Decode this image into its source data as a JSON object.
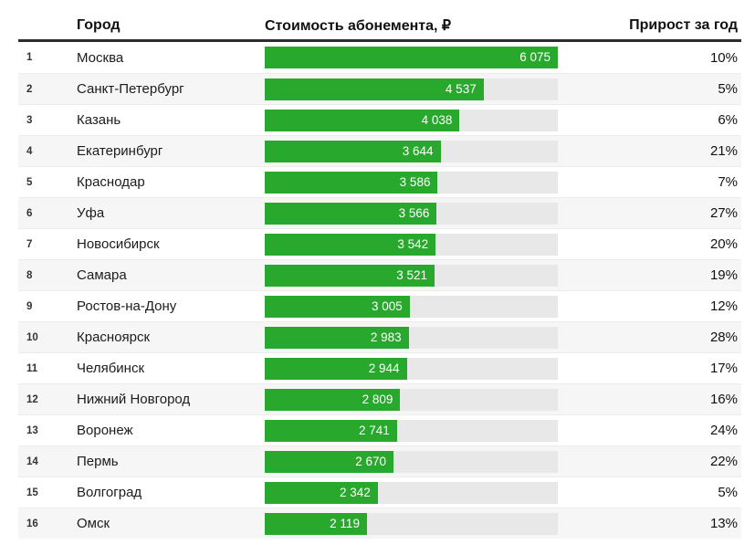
{
  "table": {
    "headers": {
      "city": "Город",
      "price": "Стоимость абонемента, ₽",
      "growth": "Прирост за год"
    },
    "max_value": 6075,
    "rows": [
      {
        "rank": "1",
        "city": "Москва",
        "value": 6075,
        "value_label": "6 075",
        "growth": "10%"
      },
      {
        "rank": "2",
        "city": "Санкт-Петербург",
        "value": 4537,
        "value_label": "4 537",
        "growth": "5%"
      },
      {
        "rank": "3",
        "city": "Казань",
        "value": 4038,
        "value_label": "4 038",
        "growth": "6%"
      },
      {
        "rank": "4",
        "city": "Екатеринбург",
        "value": 3644,
        "value_label": "3 644",
        "growth": "21%"
      },
      {
        "rank": "5",
        "city": "Краснодар",
        "value": 3586,
        "value_label": "3 586",
        "growth": "7%"
      },
      {
        "rank": "6",
        "city": "Уфа",
        "value": 3566,
        "value_label": "3 566",
        "growth": "27%"
      },
      {
        "rank": "7",
        "city": "Новосибирск",
        "value": 3542,
        "value_label": "3 542",
        "growth": "20%"
      },
      {
        "rank": "8",
        "city": "Самара",
        "value": 3521,
        "value_label": "3 521",
        "growth": "19%"
      },
      {
        "rank": "9",
        "city": "Ростов-на-Дону",
        "value": 3005,
        "value_label": "3 005",
        "growth": "12%"
      },
      {
        "rank": "10",
        "city": "Красноярск",
        "value": 2983,
        "value_label": "2 983",
        "growth": "28%"
      },
      {
        "rank": "11",
        "city": "Челябинск",
        "value": 2944,
        "value_label": "2 944",
        "growth": "17%"
      },
      {
        "rank": "12",
        "city": "Нижний Новгород",
        "value": 2809,
        "value_label": "2 809",
        "growth": "16%"
      },
      {
        "rank": "13",
        "city": "Воронеж",
        "value": 2741,
        "value_label": "2 741",
        "growth": "24%"
      },
      {
        "rank": "14",
        "city": "Пермь",
        "value": 2670,
        "value_label": "2 670",
        "growth": "22%"
      },
      {
        "rank": "15",
        "city": "Волгоград",
        "value": 2342,
        "value_label": "2 342",
        "growth": "5%"
      },
      {
        "rank": "16",
        "city": "Омск",
        "value": 2119,
        "value_label": "2 119",
        "growth": "13%"
      }
    ]
  },
  "colors": {
    "bar_green": "#28a82c",
    "bar_track": "#e8e8e8",
    "row_alt": "#f6f6f6",
    "header_rule": "#2c2c2c"
  },
  "chart_data": {
    "type": "bar",
    "orientation": "horizontal",
    "title": "",
    "xlabel": "Стоимость абонемента, ₽",
    "ylabel": "Город",
    "xlim": [
      0,
      6075
    ],
    "grid": false,
    "legend_position": "none",
    "categories": [
      "Москва",
      "Санкт-Петербург",
      "Казань",
      "Екатеринбург",
      "Краснодар",
      "Уфа",
      "Новосибирск",
      "Самара",
      "Ростов-на-Дону",
      "Красноярск",
      "Челябинск",
      "Нижний Новгород",
      "Воронеж",
      "Пермь",
      "Волгоград",
      "Омск"
    ],
    "series": [
      {
        "name": "Стоимость абонемента, ₽",
        "values": [
          6075,
          4537,
          4038,
          3644,
          3586,
          3566,
          3542,
          3521,
          3005,
          2983,
          2944,
          2809,
          2741,
          2670,
          2342,
          2119
        ]
      },
      {
        "name": "Прирост за год",
        "values": [
          "10%",
          "5%",
          "6%",
          "21%",
          "7%",
          "27%",
          "20%",
          "19%",
          "12%",
          "28%",
          "17%",
          "16%",
          "24%",
          "22%",
          "5%",
          "13%"
        ]
      }
    ]
  }
}
